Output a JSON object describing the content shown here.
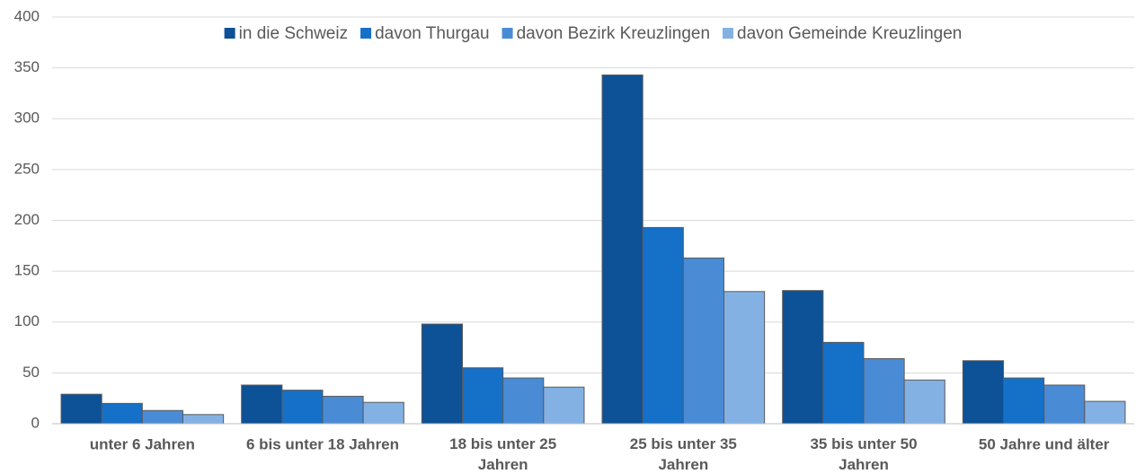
{
  "chart_data": {
    "type": "bar",
    "categories": [
      "unter 6 Jahren",
      "6 bis unter 18 Jahren",
      "18 bis unter 25 Jahren",
      "25 bis unter 35 Jahren",
      "35 bis unter 50 Jahren",
      "50 Jahre und älter"
    ],
    "series": [
      {
        "name": "in die Schweiz",
        "color": "#0d5196",
        "values": [
          29,
          38,
          98,
          343,
          131,
          62
        ]
      },
      {
        "name": "davon Thurgau",
        "color": "#1570c8",
        "values": [
          20,
          33,
          55,
          193,
          80,
          45
        ]
      },
      {
        "name": "davon Bezirk Kreuzlingen",
        "color": "#4a8bd6",
        "values": [
          13,
          27,
          45,
          163,
          64,
          38
        ]
      },
      {
        "name": "davon Gemeinde Kreuzlingen",
        "color": "#84b1e4",
        "values": [
          9,
          21,
          36,
          130,
          43,
          22
        ]
      }
    ],
    "ylim": [
      0,
      400
    ],
    "yticks": [
      0,
      50,
      100,
      150,
      200,
      250,
      300,
      350,
      400
    ],
    "grid": true,
    "legend": "top"
  }
}
